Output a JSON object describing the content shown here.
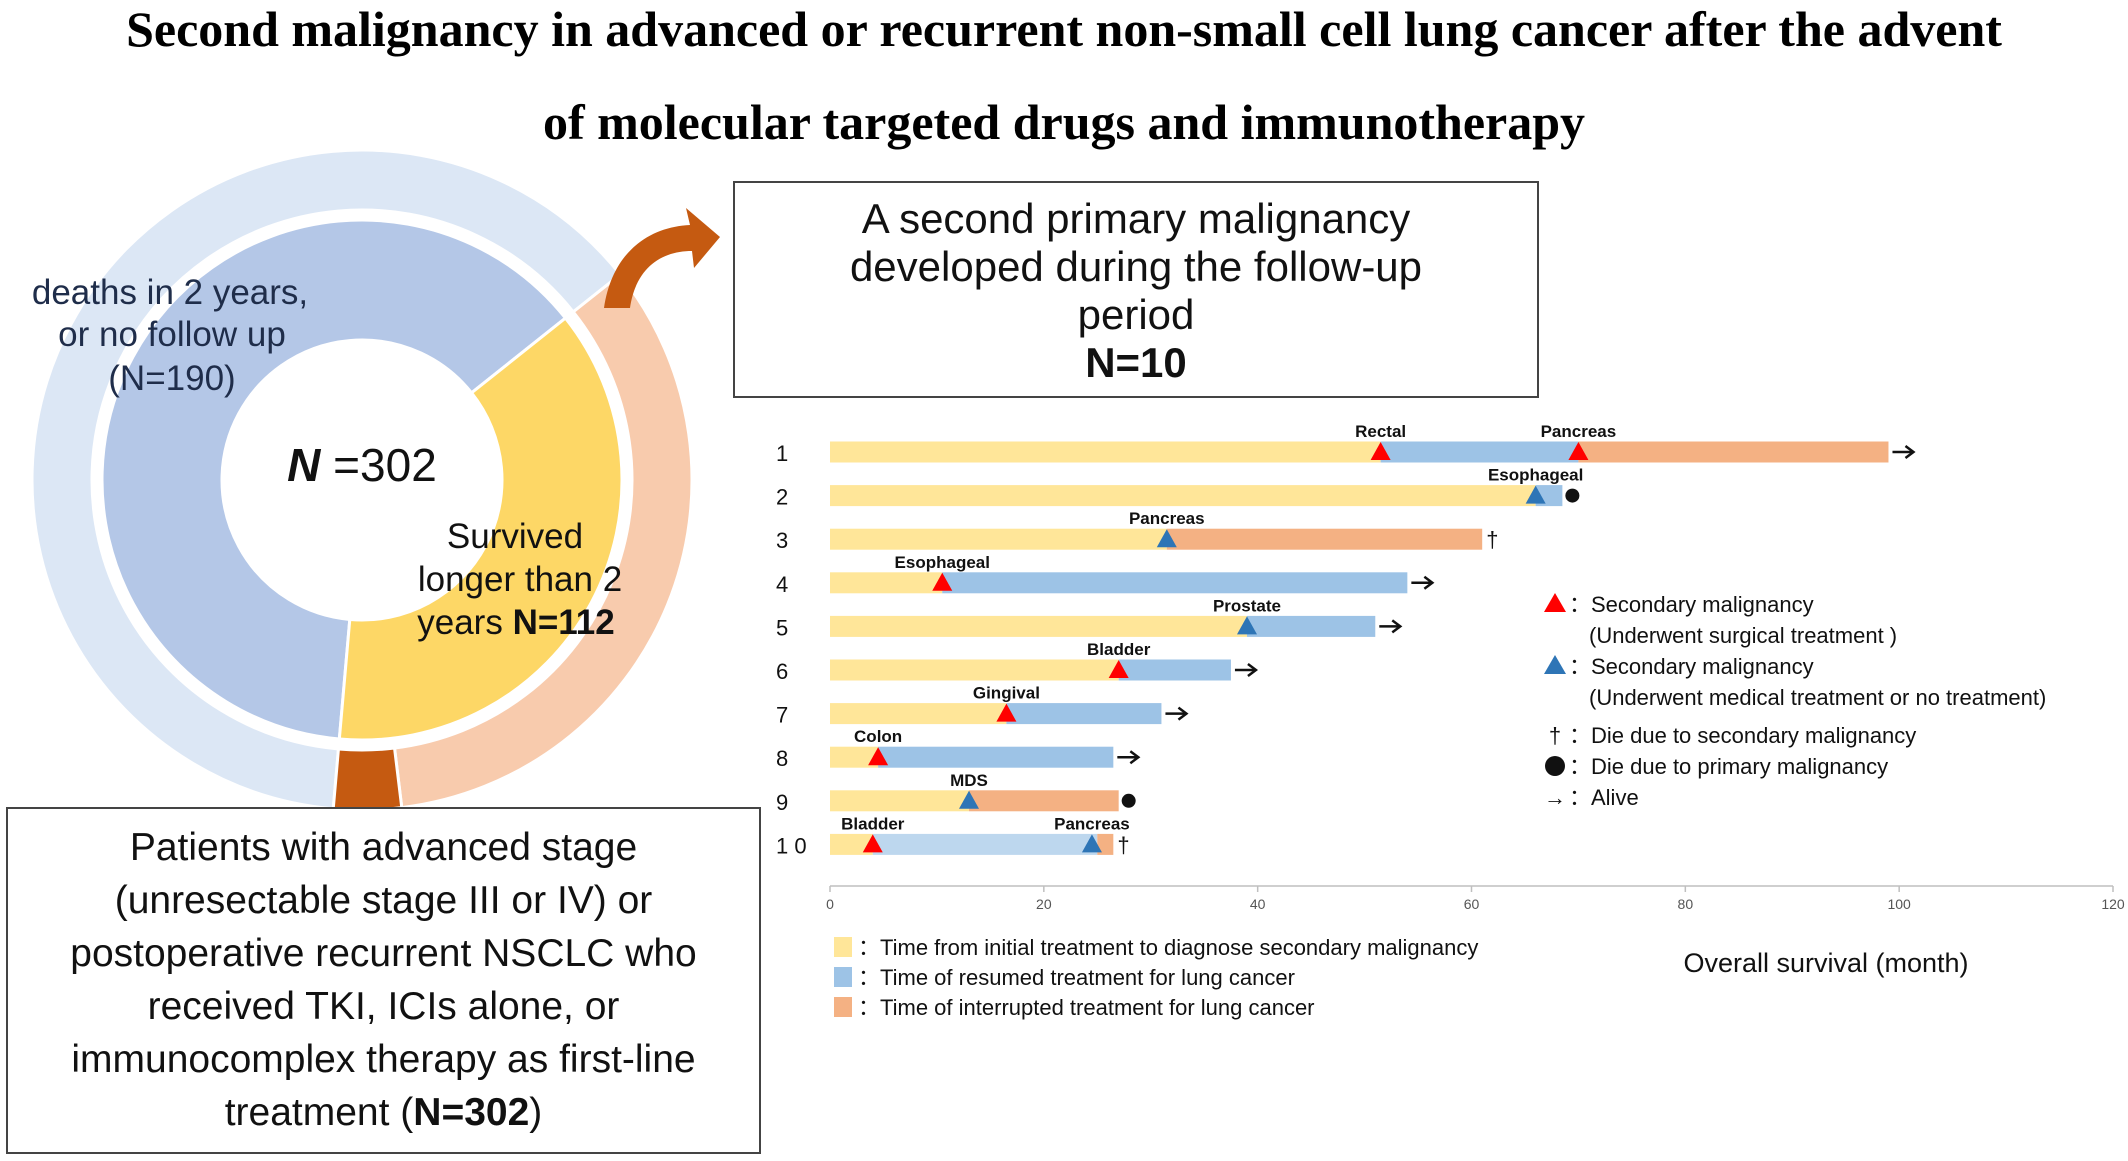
{
  "title": {
    "line1": "Second  malignancy in advanced or recurrent non-small cell lung cancer after the advent",
    "line2": "of molecular  targeted  drugs  and  immunotherapy"
  },
  "donut": {
    "center_label_italic": "N",
    "center_label_rest": " =302",
    "inner_segments": [
      {
        "key": "deaths",
        "value": 190,
        "color": "#b4c7e7"
      },
      {
        "key": "survived",
        "value": 112,
        "color": "#fdd766"
      }
    ],
    "outer_segments": [
      {
        "key": "deaths_outer",
        "value": 190,
        "color": "#dce7f5"
      },
      {
        "key": "survived_outer",
        "value": 102,
        "color": "#f8cbad"
      },
      {
        "key": "spm",
        "value": 10,
        "color": "#c55a11"
      }
    ],
    "deaths_label": {
      "line1": "deaths in 2 years,",
      "line2": "or no follow up",
      "line3": "(N=190)"
    },
    "survived_label": {
      "line1": "Survived",
      "line2": "longer than 2",
      "line3_pre": "years ",
      "line3_bold": "N=112"
    }
  },
  "top_box": {
    "line1": "A second primary malignancy",
    "line2": "developed during the follow-up",
    "line3": "period",
    "n": "N=10"
  },
  "bottom_box": {
    "line1": "Patients with advanced stage",
    "line2": "(unresectable stage III or IV) or",
    "line3": "postoperative recurrent NSCLC who",
    "line4": "received TKI, ICIs alone, or",
    "line5": "immunocomplex therapy as first-line",
    "line6_pre": "treatment (",
    "line6_bold": "N=302",
    "line6_post": ")"
  },
  "chart_data": {
    "type": "bar",
    "orientation": "horizontal-stacked",
    "xlabel": "Overall survival  (month)",
    "xlim": [
      0,
      120
    ],
    "xticks": [
      0,
      20,
      40,
      60,
      80,
      100,
      120
    ],
    "colors": {
      "pre_diagnosis": "#ffe699",
      "resumed": "#9dc3e6",
      "interrupted": "#f4b183",
      "patient10_segment": "#bdd7ee",
      "surgical": "#ff0000",
      "medical": "#2e75b6"
    },
    "legend_segments": [
      {
        "key": "pre_diagnosis",
        "label": "：Time from initial treatment to diagnose secondary malignancy",
        "color": "#ffe699"
      },
      {
        "key": "resumed",
        "label": "：Time of resumed treatment for lung cancer",
        "color": "#9dc3e6"
      },
      {
        "key": "interrupted",
        "label": "：Time of interrupted treatment for lung cancer",
        "color": "#f4b183"
      }
    ],
    "legend_markers": [
      {
        "symbol": "triangle-red",
        "line1": "：Secondary malignancy",
        "line2": "(Underwent surgical treatment )"
      },
      {
        "symbol": "triangle-blue",
        "line1": "：Secondary malignancy",
        "line2": "(Underwent medical treatment or no treatment)"
      },
      {
        "symbol": "dagger",
        "glyph": "†",
        "line1": "：Die due to secondary malignancy"
      },
      {
        "symbol": "dot",
        "line1": "：Die due to primary malignancy"
      },
      {
        "symbol": "arrow",
        "glyph": "→",
        "line1": "：Alive"
      }
    ],
    "patients": [
      {
        "label": "1",
        "segments": [
          {
            "type": "pre_diagnosis",
            "from": 0,
            "to": 51.5
          },
          {
            "type": "resumed",
            "from": 51.5,
            "to": 70
          },
          {
            "type": "interrupted",
            "from": 70,
            "to": 99
          }
        ],
        "events": [
          {
            "at": 51.5,
            "name": "Rectal",
            "marker": "surgical"
          },
          {
            "at": 70,
            "name": "Pancreas",
            "marker": "surgical"
          }
        ],
        "end": "arrow"
      },
      {
        "label": "2",
        "segments": [
          {
            "type": "pre_diagnosis",
            "from": 0,
            "to": 66
          },
          {
            "type": "resumed",
            "from": 66,
            "to": 68.5
          }
        ],
        "events": [
          {
            "at": 66,
            "name": "Esophageal",
            "marker": "medical"
          }
        ],
        "end": "dot"
      },
      {
        "label": "3",
        "segments": [
          {
            "type": "pre_diagnosis",
            "from": 0,
            "to": 31.5
          },
          {
            "type": "interrupted",
            "from": 31.5,
            "to": 61
          }
        ],
        "events": [
          {
            "at": 31.5,
            "name": "Pancreas",
            "marker": "medical"
          }
        ],
        "end": "dagger"
      },
      {
        "label": "4",
        "segments": [
          {
            "type": "pre_diagnosis",
            "from": 0,
            "to": 10.5
          },
          {
            "type": "resumed",
            "from": 10.5,
            "to": 54
          }
        ],
        "events": [
          {
            "at": 10.5,
            "name": "Esophageal",
            "marker": "surgical"
          }
        ],
        "end": "arrow"
      },
      {
        "label": "5",
        "segments": [
          {
            "type": "pre_diagnosis",
            "from": 0,
            "to": 39
          },
          {
            "type": "resumed",
            "from": 39,
            "to": 51
          }
        ],
        "events": [
          {
            "at": 39,
            "name": "Prostate",
            "marker": "medical"
          }
        ],
        "end": "arrow"
      },
      {
        "label": "6",
        "segments": [
          {
            "type": "pre_diagnosis",
            "from": 0,
            "to": 27
          },
          {
            "type": "resumed",
            "from": 27,
            "to": 37.5
          }
        ],
        "events": [
          {
            "at": 27,
            "name": "Bladder",
            "marker": "surgical"
          }
        ],
        "end": "arrow"
      },
      {
        "label": "7",
        "segments": [
          {
            "type": "pre_diagnosis",
            "from": 0,
            "to": 16.5
          },
          {
            "type": "resumed",
            "from": 16.5,
            "to": 31
          }
        ],
        "events": [
          {
            "at": 16.5,
            "name": "Gingival",
            "marker": "surgical"
          }
        ],
        "end": "arrow"
      },
      {
        "label": "8",
        "segments": [
          {
            "type": "pre_diagnosis",
            "from": 0,
            "to": 4.5
          },
          {
            "type": "resumed",
            "from": 4.5,
            "to": 26.5
          }
        ],
        "events": [
          {
            "at": 4.5,
            "name": "Colon",
            "marker": "surgical"
          }
        ],
        "end": "arrow"
      },
      {
        "label": "9",
        "segments": [
          {
            "type": "pre_diagnosis",
            "from": 0,
            "to": 13
          },
          {
            "type": "interrupted",
            "from": 13,
            "to": 27
          }
        ],
        "events": [
          {
            "at": 13,
            "name": "MDS",
            "marker": "medical"
          }
        ],
        "end": "dot"
      },
      {
        "label": "1 0",
        "segments": [
          {
            "type": "pre_diagnosis",
            "from": 0,
            "to": 4
          },
          {
            "type": "patient10_segment",
            "from": 4,
            "to": 25
          },
          {
            "type": "interrupted",
            "from": 25,
            "to": 26.5
          }
        ],
        "events": [
          {
            "at": 4,
            "name": "Bladder",
            "marker": "surgical"
          },
          {
            "at": 24.5,
            "name": "Pancreas",
            "marker": "medical"
          }
        ],
        "end": "dagger"
      }
    ]
  }
}
